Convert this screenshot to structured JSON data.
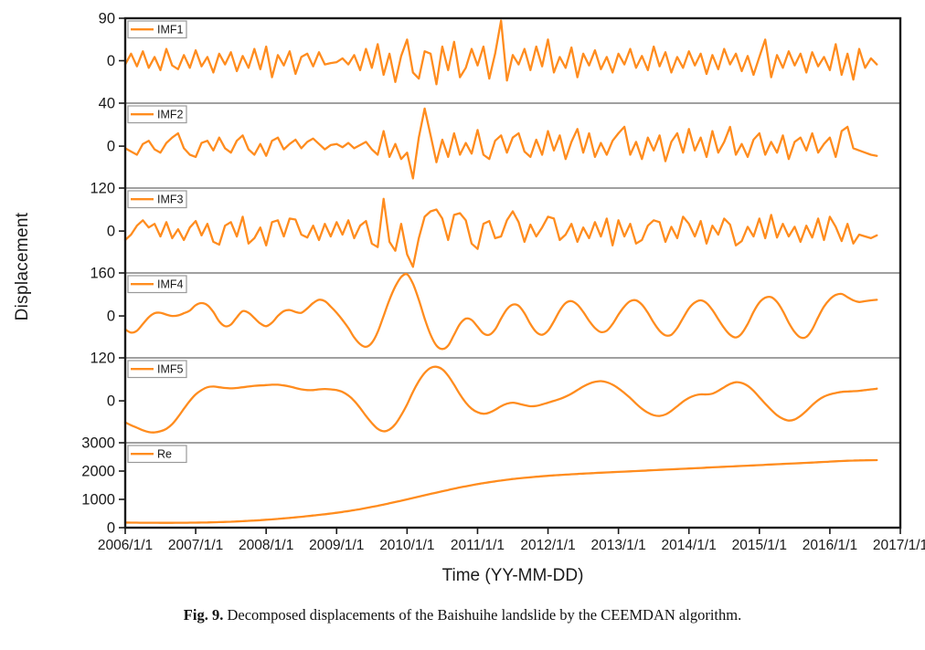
{
  "figure": {
    "y_axis_label": "Displacement",
    "x_axis_title": "Time (YY-MM-DD)",
    "caption_label": "Fig. 9.",
    "caption_text": " Decomposed displacements of the Baishuihe landslide by the CEEMDAN algorithm."
  },
  "chart_data": {
    "type": "line",
    "title": "Decomposed displacements of the Baishuihe landslide (CEEMDAN)",
    "xlabel": "Time (YY-MM-DD)",
    "ylabel": "Displacement",
    "line_color": "#FF8C1E",
    "axis_color": "#1a1a1a",
    "separator_color": "#808080",
    "legend_border_color": "#999999",
    "x_start_year": 2006,
    "x_end_year": 2017,
    "x_tick_labels": [
      "2006/1/1",
      "2007/1/1",
      "2008/1/1",
      "2009/1/1",
      "2010/1/1",
      "2011/1/1",
      "2012/1/1",
      "2013/1/1",
      "2014/1/1",
      "2015/1/1",
      "2016/1/1",
      "2017/1/1"
    ],
    "sampling": "monthly values starting 2006-01, ending 2016-09",
    "panels": [
      {
        "name": "IMF1",
        "ylim": [
          -90,
          90
        ],
        "yticks": [
          90,
          0
        ],
        "smooth": false,
        "values": [
          -8,
          15,
          -12,
          20,
          -15,
          8,
          -20,
          25,
          -10,
          -18,
          12,
          -15,
          22,
          -12,
          8,
          -25,
          15,
          -8,
          18,
          -22,
          10,
          -15,
          25,
          -18,
          30,
          -35,
          12,
          -10,
          20,
          -28,
          8,
          15,
          -12,
          18,
          -8,
          -5,
          -3,
          5,
          -8,
          12,
          -20,
          25,
          -15,
          35,
          -30,
          15,
          -45,
          10,
          45,
          -25,
          -38,
          20,
          15,
          -50,
          30,
          -20,
          40,
          -35,
          -15,
          25,
          -10,
          30,
          -38,
          15,
          85,
          -42,
          12,
          -8,
          25,
          -20,
          30,
          -12,
          45,
          -25,
          8,
          -15,
          28,
          -35,
          15,
          -10,
          22,
          -18,
          8,
          -25,
          15,
          -8,
          25,
          -15,
          10,
          -20,
          30,
          -12,
          18,
          -25,
          8,
          -15,
          20,
          -10,
          15,
          -28,
          12,
          -18,
          25,
          -8,
          15,
          -22,
          10,
          -30,
          8,
          45,
          -35,
          12,
          -15,
          20,
          -10,
          15,
          -25,
          18,
          -12,
          8,
          -20,
          35,
          -30,
          15,
          -40,
          25,
          -15,
          5,
          -8
        ]
      },
      {
        "name": "IMF2",
        "ylim": [
          -39,
          40
        ],
        "yticks": [
          40,
          0
        ],
        "smooth": false,
        "values": [
          -2,
          -5,
          -8,
          2,
          5,
          -3,
          -6,
          3,
          8,
          12,
          -2,
          -8,
          -10,
          3,
          5,
          -4,
          8,
          -2,
          -6,
          5,
          10,
          -3,
          -8,
          2,
          -9,
          5,
          8,
          -3,
          2,
          6,
          -2,
          4,
          7,
          2,
          -3,
          1,
          2,
          -1,
          3,
          -2,
          1,
          4,
          -3,
          -8,
          14,
          -10,
          2,
          -12,
          -6,
          -30,
          8,
          35,
          10,
          -15,
          6,
          -10,
          12,
          -8,
          3,
          -7,
          15,
          -8,
          -12,
          5,
          10,
          -6,
          8,
          12,
          -5,
          -10,
          6,
          -8,
          14,
          -4,
          10,
          -12,
          4,
          16,
          -6,
          12,
          -10,
          3,
          -8,
          5,
          12,
          18,
          -8,
          4,
          -12,
          8,
          -4,
          10,
          -14,
          4,
          12,
          -6,
          16,
          -4,
          8,
          -10,
          14,
          -6,
          4,
          18,
          -8,
          2,
          -10,
          6,
          12,
          -8,
          4,
          -6,
          10,
          -12,
          4,
          8,
          -4,
          12,
          -6,
          2,
          8,
          -10,
          14,
          18,
          -2,
          -4,
          -6,
          -8,
          -9
        ]
      },
      {
        "name": "IMF3",
        "ylim": [
          -117,
          120
        ],
        "yticks": [
          120,
          0
        ],
        "smooth": false,
        "values": [
          -25,
          -10,
          15,
          30,
          10,
          20,
          -15,
          25,
          -20,
          5,
          -25,
          10,
          28,
          -12,
          20,
          -30,
          -38,
          15,
          25,
          -15,
          40,
          -35,
          -20,
          10,
          -40,
          25,
          30,
          -15,
          35,
          32,
          -10,
          -18,
          15,
          -25,
          20,
          -15,
          25,
          -10,
          30,
          -20,
          15,
          28,
          -35,
          -45,
          90,
          -30,
          -55,
          20,
          -65,
          -100,
          -20,
          40,
          55,
          60,
          35,
          -25,
          45,
          50,
          30,
          -35,
          -50,
          20,
          28,
          -20,
          -15,
          30,
          55,
          25,
          -30,
          18,
          -15,
          10,
          40,
          35,
          -25,
          -10,
          20,
          -30,
          10,
          -20,
          25,
          -15,
          35,
          -40,
          30,
          -15,
          20,
          -35,
          -25,
          15,
          30,
          25,
          -30,
          12,
          -20,
          40,
          20,
          -15,
          28,
          -35,
          15,
          -10,
          35,
          18,
          -40,
          -28,
          12,
          -15,
          35,
          -20,
          45,
          -18,
          20,
          -15,
          12,
          -30,
          15,
          -18,
          35,
          -25,
          40,
          12,
          -28,
          20,
          -35,
          -10,
          -15,
          -20,
          -12
        ]
      },
      {
        "name": "IMF4",
        "ylim": [
          -156,
          160
        ],
        "yticks": [
          160,
          0
        ],
        "smooth": true,
        "values": [
          -50,
          -62,
          -55,
          -30,
          -5,
          10,
          12,
          5,
          0,
          2,
          10,
          20,
          40,
          48,
          40,
          15,
          -20,
          -38,
          -32,
          -5,
          18,
          12,
          -8,
          -28,
          -38,
          -25,
          0,
          18,
          22,
          15,
          12,
          28,
          48,
          60,
          55,
          35,
          12,
          -15,
          -45,
          -80,
          -105,
          -115,
          -100,
          -60,
          0,
          60,
          110,
          145,
          155,
          120,
          60,
          -10,
          -70,
          -110,
          -123,
          -110,
          -70,
          -30,
          -10,
          -15,
          -40,
          -65,
          -70,
          -50,
          -10,
          25,
          42,
          38,
          10,
          -30,
          -60,
          -70,
          -55,
          -20,
          20,
          48,
          55,
          42,
          15,
          -18,
          -45,
          -60,
          -55,
          -30,
          5,
          35,
          55,
          58,
          42,
          12,
          -25,
          -55,
          -72,
          -70,
          -45,
          -8,
          28,
          50,
          58,
          48,
          22,
          -12,
          -45,
          -70,
          -80,
          -65,
          -30,
          15,
          50,
          68,
          70,
          52,
          18,
          -25,
          -60,
          -80,
          -78,
          -50,
          -5,
          35,
          62,
          78,
          82,
          70,
          58,
          52,
          55,
          58,
          60
        ]
      },
      {
        "name": "IMF5",
        "ylim": [
          -117,
          120
        ],
        "yticks": [
          120,
          0
        ],
        "smooth": true,
        "values": [
          -60,
          -68,
          -75,
          -82,
          -87,
          -88,
          -85,
          -78,
          -65,
          -45,
          -22,
          0,
          18,
          30,
          38,
          40,
          38,
          36,
          35,
          36,
          38,
          40,
          42,
          43,
          44,
          45,
          45,
          43,
          40,
          36,
          32,
          30,
          30,
          32,
          33,
          32,
          30,
          25,
          15,
          0,
          -20,
          -42,
          -62,
          -78,
          -85,
          -80,
          -65,
          -40,
          -10,
          25,
          55,
          78,
          92,
          95,
          88,
          70,
          45,
          18,
          -5,
          -22,
          -32,
          -36,
          -33,
          -25,
          -15,
          -8,
          -5,
          -8,
          -12,
          -15,
          -14,
          -10,
          -5,
          0,
          5,
          12,
          20,
          30,
          40,
          48,
          53,
          55,
          52,
          45,
          35,
          22,
          8,
          -8,
          -22,
          -33,
          -40,
          -42,
          -38,
          -28,
          -15,
          -2,
          8,
          15,
          18,
          18,
          20,
          28,
          38,
          47,
          52,
          50,
          42,
          28,
          10,
          -8,
          -25,
          -40,
          -50,
          -55,
          -52,
          -42,
          -28,
          -12,
          2,
          12,
          18,
          22,
          25,
          26,
          27,
          28,
          30,
          32,
          34
        ]
      },
      {
        "name": "Re",
        "ylim": [
          0,
          3000
        ],
        "yticks": [
          3000,
          2000,
          1000,
          0
        ],
        "smooth": true,
        "values": [
          180,
          178,
          176,
          175,
          174,
          173,
          172,
          172,
          172,
          173,
          174,
          176,
          178,
          181,
          185,
          190,
          196,
          203,
          211,
          220,
          230,
          241,
          253,
          266,
          280,
          295,
          311,
          328,
          346,
          365,
          385,
          406,
          428,
          451,
          475,
          500,
          527,
          556,
          587,
          620,
          655,
          692,
          731,
          772,
          815,
          860,
          906,
          953,
          1000,
          1048,
          1096,
          1144,
          1192,
          1240,
          1287,
          1333,
          1378,
          1421,
          1462,
          1501,
          1538,
          1573,
          1606,
          1637,
          1666,
          1693,
          1718,
          1741,
          1762,
          1781,
          1799,
          1816,
          1832,
          1847,
          1861,
          1874,
          1886,
          1898,
          1909,
          1920,
          1931,
          1941,
          1951,
          1961,
          1971,
          1981,
          1991,
          2001,
          2011,
          2021,
          2031,
          2041,
          2051,
          2061,
          2071,
          2081,
          2091,
          2101,
          2111,
          2121,
          2131,
          2141,
          2151,
          2161,
          2171,
          2181,
          2191,
          2201,
          2211,
          2221,
          2231,
          2241,
          2251,
          2261,
          2271,
          2281,
          2291,
          2301,
          2312,
          2323,
          2334,
          2345,
          2356,
          2365,
          2372,
          2378,
          2382,
          2385,
          2387
        ]
      }
    ]
  }
}
